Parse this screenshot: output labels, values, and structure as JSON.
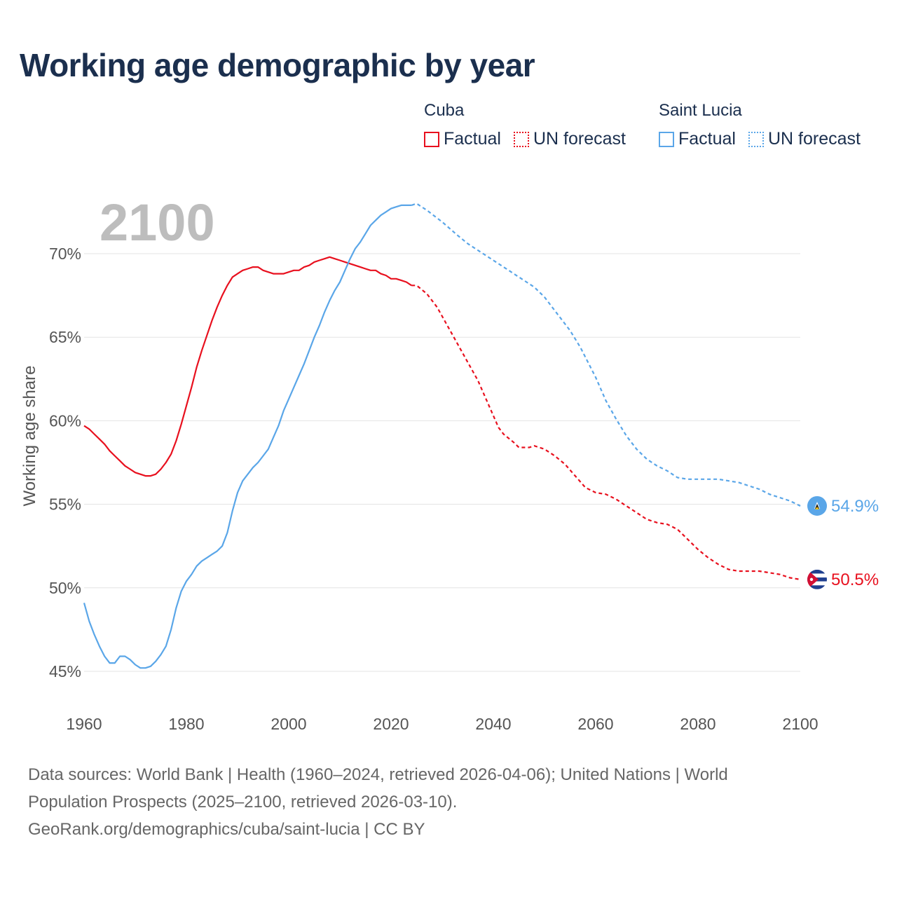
{
  "title": "Working age demographic by year",
  "legend": {
    "groups": [
      {
        "name": "Cuba",
        "factual_label": "Factual",
        "forecast_label": "UN forecast",
        "color": "#e8101e"
      },
      {
        "name": "Saint Lucia",
        "factual_label": "Factual",
        "forecast_label": "UN forecast",
        "color": "#5aa6e8"
      }
    ]
  },
  "year_watermark": "2100",
  "chart_data": {
    "type": "line",
    "title": "Working age demographic by year",
    "xlabel": "",
    "ylabel": "Working age share",
    "xlim": [
      1960,
      2100
    ],
    "ylim": [
      45,
      72.9
    ],
    "x_ticks": [
      1960,
      1980,
      2000,
      2020,
      2040,
      2060,
      2080,
      2100
    ],
    "x_tick_labels": [
      "1960",
      "1980",
      "2000",
      "2020",
      "2040",
      "2060",
      "2080",
      "2100"
    ],
    "y_ticks": [
      45,
      50,
      55,
      60,
      65,
      70
    ],
    "y_tick_labels": [
      "45%",
      "50%",
      "55%",
      "60%",
      "65%",
      "70%"
    ],
    "factual_range": [
      1960,
      2024
    ],
    "forecast_range": [
      2024,
      2100
    ],
    "series": [
      {
        "name": "Cuba",
        "color": "#e8101e",
        "end_label": "50.5%",
        "factual": [
          [
            1960,
            59.7
          ],
          [
            1961,
            59.5
          ],
          [
            1962,
            59.2
          ],
          [
            1963,
            58.9
          ],
          [
            1964,
            58.6
          ],
          [
            1965,
            58.2
          ],
          [
            1966,
            57.9
          ],
          [
            1967,
            57.6
          ],
          [
            1968,
            57.3
          ],
          [
            1969,
            57.1
          ],
          [
            1970,
            56.9
          ],
          [
            1971,
            56.8
          ],
          [
            1972,
            56.7
          ],
          [
            1973,
            56.7
          ],
          [
            1974,
            56.8
          ],
          [
            1975,
            57.1
          ],
          [
            1976,
            57.5
          ],
          [
            1977,
            58.0
          ],
          [
            1978,
            58.8
          ],
          [
            1979,
            59.8
          ],
          [
            1980,
            60.9
          ],
          [
            1981,
            62.0
          ],
          [
            1982,
            63.2
          ],
          [
            1983,
            64.2
          ],
          [
            1984,
            65.1
          ],
          [
            1985,
            66.0
          ],
          [
            1986,
            66.8
          ],
          [
            1987,
            67.5
          ],
          [
            1988,
            68.1
          ],
          [
            1989,
            68.6
          ],
          [
            1990,
            68.8
          ],
          [
            1991,
            69.0
          ],
          [
            1992,
            69.1
          ],
          [
            1993,
            69.2
          ],
          [
            1994,
            69.2
          ],
          [
            1995,
            69.0
          ],
          [
            1996,
            68.9
          ],
          [
            1997,
            68.8
          ],
          [
            1998,
            68.8
          ],
          [
            1999,
            68.8
          ],
          [
            2000,
            68.9
          ],
          [
            2001,
            69.0
          ],
          [
            2002,
            69.0
          ],
          [
            2003,
            69.2
          ],
          [
            2004,
            69.3
          ],
          [
            2005,
            69.5
          ],
          [
            2006,
            69.6
          ],
          [
            2007,
            69.7
          ],
          [
            2008,
            69.8
          ],
          [
            2009,
            69.7
          ],
          [
            2010,
            69.6
          ],
          [
            2011,
            69.5
          ],
          [
            2012,
            69.4
          ],
          [
            2013,
            69.3
          ],
          [
            2014,
            69.2
          ],
          [
            2015,
            69.1
          ],
          [
            2016,
            69.0
          ],
          [
            2017,
            69.0
          ],
          [
            2018,
            68.8
          ],
          [
            2019,
            68.7
          ],
          [
            2020,
            68.5
          ],
          [
            2021,
            68.5
          ],
          [
            2022,
            68.4
          ],
          [
            2023,
            68.3
          ],
          [
            2024,
            68.1
          ]
        ],
        "forecast": [
          [
            2024,
            68.1
          ],
          [
            2025,
            68.1
          ],
          [
            2027,
            67.6
          ],
          [
            2029,
            66.8
          ],
          [
            2031,
            65.7
          ],
          [
            2033,
            64.6
          ],
          [
            2035,
            63.5
          ],
          [
            2037,
            62.4
          ],
          [
            2038,
            61.7
          ],
          [
            2040,
            60.3
          ],
          [
            2041,
            59.6
          ],
          [
            2042,
            59.2
          ],
          [
            2044,
            58.7
          ],
          [
            2045,
            58.4
          ],
          [
            2047,
            58.4
          ],
          [
            2048,
            58.5
          ],
          [
            2050,
            58.3
          ],
          [
            2052,
            57.9
          ],
          [
            2054,
            57.4
          ],
          [
            2056,
            56.7
          ],
          [
            2058,
            56.0
          ],
          [
            2060,
            55.7
          ],
          [
            2062,
            55.6
          ],
          [
            2064,
            55.3
          ],
          [
            2066,
            54.9
          ],
          [
            2068,
            54.5
          ],
          [
            2070,
            54.1
          ],
          [
            2072,
            53.9
          ],
          [
            2074,
            53.8
          ],
          [
            2076,
            53.5
          ],
          [
            2078,
            52.9
          ],
          [
            2080,
            52.3
          ],
          [
            2082,
            51.8
          ],
          [
            2084,
            51.4
          ],
          [
            2086,
            51.1
          ],
          [
            2088,
            51.0
          ],
          [
            2090,
            51.0
          ],
          [
            2092,
            51.0
          ],
          [
            2094,
            50.9
          ],
          [
            2096,
            50.8
          ],
          [
            2098,
            50.6
          ],
          [
            2100,
            50.5
          ]
        ]
      },
      {
        "name": "Saint Lucia",
        "color": "#5aa6e8",
        "end_label": "54.9%",
        "factual": [
          [
            1960,
            49.1
          ],
          [
            1961,
            48.0
          ],
          [
            1962,
            47.2
          ],
          [
            1963,
            46.5
          ],
          [
            1964,
            45.9
          ],
          [
            1965,
            45.5
          ],
          [
            1966,
            45.5
          ],
          [
            1967,
            45.9
          ],
          [
            1968,
            45.9
          ],
          [
            1969,
            45.7
          ],
          [
            1970,
            45.4
          ],
          [
            1971,
            45.2
          ],
          [
            1972,
            45.2
          ],
          [
            1973,
            45.3
          ],
          [
            1974,
            45.6
          ],
          [
            1975,
            46.0
          ],
          [
            1976,
            46.5
          ],
          [
            1977,
            47.5
          ],
          [
            1978,
            48.8
          ],
          [
            1979,
            49.8
          ],
          [
            1980,
            50.4
          ],
          [
            1981,
            50.8
          ],
          [
            1982,
            51.3
          ],
          [
            1983,
            51.6
          ],
          [
            1984,
            51.8
          ],
          [
            1985,
            52.0
          ],
          [
            1986,
            52.2
          ],
          [
            1987,
            52.5
          ],
          [
            1988,
            53.3
          ],
          [
            1989,
            54.6
          ],
          [
            1990,
            55.7
          ],
          [
            1991,
            56.4
          ],
          [
            1992,
            56.8
          ],
          [
            1993,
            57.2
          ],
          [
            1994,
            57.5
          ],
          [
            1995,
            57.9
          ],
          [
            1996,
            58.3
          ],
          [
            1997,
            59.0
          ],
          [
            1998,
            59.7
          ],
          [
            1999,
            60.6
          ],
          [
            2000,
            61.3
          ],
          [
            2001,
            62.0
          ],
          [
            2002,
            62.7
          ],
          [
            2003,
            63.4
          ],
          [
            2004,
            64.2
          ],
          [
            2005,
            65.0
          ],
          [
            2006,
            65.7
          ],
          [
            2007,
            66.5
          ],
          [
            2008,
            67.2
          ],
          [
            2009,
            67.8
          ],
          [
            2010,
            68.3
          ],
          [
            2011,
            69.0
          ],
          [
            2012,
            69.7
          ],
          [
            2013,
            70.3
          ],
          [
            2014,
            70.7
          ],
          [
            2015,
            71.2
          ],
          [
            2016,
            71.7
          ],
          [
            2017,
            72.0
          ],
          [
            2018,
            72.3
          ],
          [
            2019,
            72.5
          ],
          [
            2020,
            72.7
          ],
          [
            2021,
            72.8
          ],
          [
            2022,
            72.9
          ],
          [
            2023,
            72.9
          ],
          [
            2024,
            72.9
          ]
        ],
        "forecast": [
          [
            2024,
            72.9
          ],
          [
            2025,
            73.0
          ],
          [
            2027,
            72.6
          ],
          [
            2030,
            71.9
          ],
          [
            2033,
            71.1
          ],
          [
            2035,
            70.6
          ],
          [
            2038,
            70.0
          ],
          [
            2040,
            69.6
          ],
          [
            2043,
            69.0
          ],
          [
            2045,
            68.6
          ],
          [
            2048,
            68.0
          ],
          [
            2050,
            67.4
          ],
          [
            2052,
            66.6
          ],
          [
            2055,
            65.4
          ],
          [
            2057,
            64.4
          ],
          [
            2058,
            63.8
          ],
          [
            2060,
            62.6
          ],
          [
            2062,
            61.2
          ],
          [
            2064,
            60.1
          ],
          [
            2066,
            59.1
          ],
          [
            2068,
            58.3
          ],
          [
            2070,
            57.7
          ],
          [
            2072,
            57.3
          ],
          [
            2074,
            57.0
          ],
          [
            2076,
            56.6
          ],
          [
            2078,
            56.5
          ],
          [
            2080,
            56.5
          ],
          [
            2082,
            56.5
          ],
          [
            2084,
            56.5
          ],
          [
            2086,
            56.4
          ],
          [
            2088,
            56.3
          ],
          [
            2090,
            56.1
          ],
          [
            2092,
            55.9
          ],
          [
            2094,
            55.6
          ],
          [
            2096,
            55.4
          ],
          [
            2098,
            55.2
          ],
          [
            2100,
            54.9
          ]
        ]
      }
    ]
  },
  "footer": {
    "line1": "Data sources: World Bank | Health (1960–2024, retrieved 2026-04-06); United Nations | World",
    "line2": "Population Prospects (2025–2100, retrieved 2026-03-10).",
    "line3": "GeoRank.org/demographics/cuba/saint-lucia | CC BY"
  }
}
